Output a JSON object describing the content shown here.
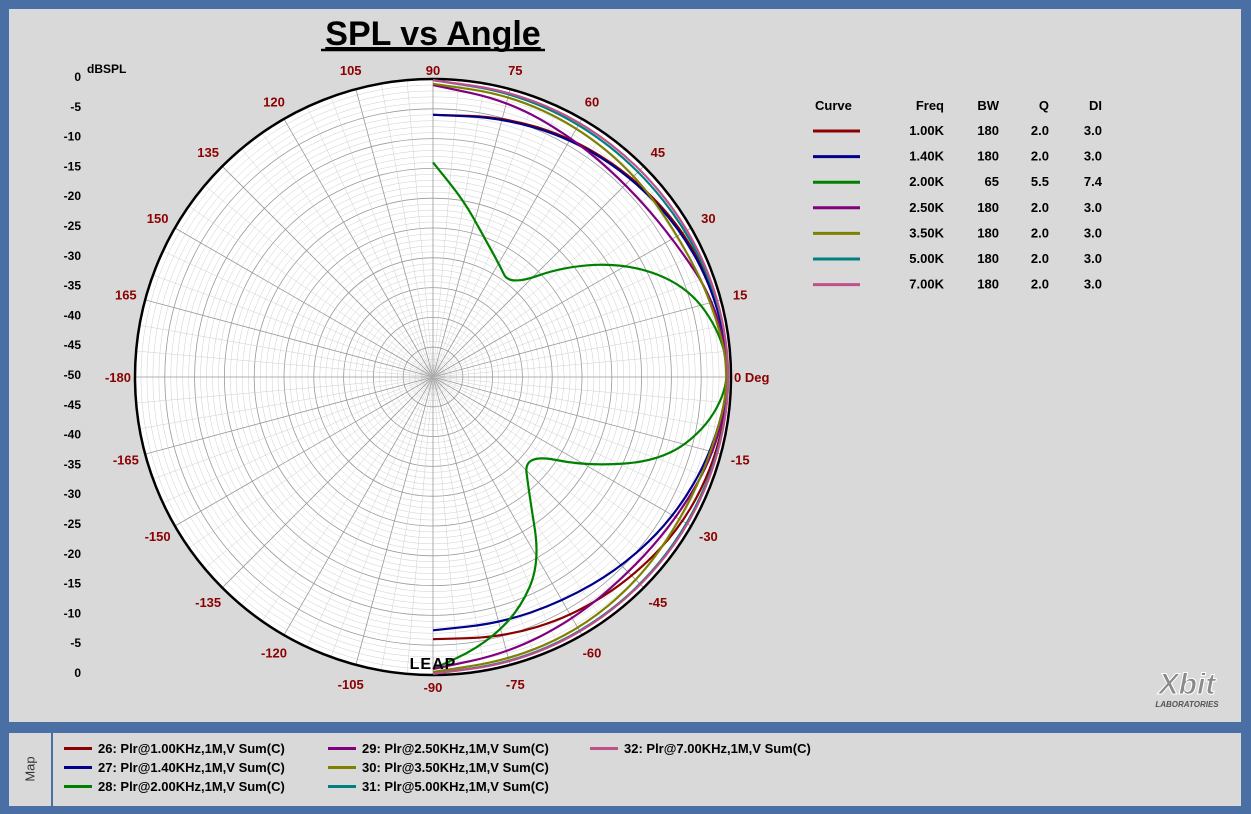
{
  "title": "SPL vs Angle",
  "y_axis_label": "dBSPL",
  "angle_unit_label": "0 Deg",
  "chart_data": {
    "type": "polar",
    "title": "SPL vs Angle",
    "radial_label": "dBSPL",
    "radial_range_db": [
      -50,
      0
    ],
    "radial_ticks_top": [
      "0",
      "-5",
      "-10",
      "-15",
      "-20",
      "-25",
      "-30",
      "-35",
      "-40",
      "-45",
      "-50"
    ],
    "radial_ticks_bottom": [
      "-45",
      "-40",
      "-35",
      "-30",
      "-25",
      "-20",
      "-15",
      "-10",
      "-5",
      "0"
    ],
    "angle_labels": [
      "0 Deg",
      "15",
      "30",
      "45",
      "60",
      "75",
      "90",
      "105",
      "120",
      "135",
      "150",
      "165",
      "-180",
      "-165",
      "-150",
      "-135",
      "-120",
      "-105",
      "-90",
      "-75",
      "-60",
      "-45",
      "-30",
      "-15"
    ],
    "grid": true,
    "series": [
      {
        "name": "26: Plr@1.00KHz,1M,V Sum(C)",
        "color": "#8b0000",
        "bw": 180,
        "q": 2.0,
        "angles": [
          0,
          15,
          30,
          45,
          60,
          75,
          90,
          -15,
          -30,
          -45,
          -60,
          -75,
          -90
        ],
        "db": [
          0,
          -0.5,
          -1.2,
          -2.5,
          -3.6,
          -4.8,
          -6,
          -0.5,
          -1.2,
          -2.5,
          -3.6,
          -4.8,
          -6
        ]
      },
      {
        "name": "27: Plr@1.40KHz,1M,V Sum(C)",
        "color": "#00008b",
        "bw": 180,
        "q": 2.0,
        "angles": [
          0,
          15,
          30,
          45,
          60,
          75,
          90,
          -15,
          -30,
          -45,
          -60,
          -75,
          -90
        ],
        "db": [
          0,
          -0.6,
          -1.5,
          -2.7,
          -3.8,
          -5,
          -6,
          -1.5,
          -3.2,
          -5,
          -6.5,
          -7.2,
          -7.5
        ]
      },
      {
        "name": "28: Plr@2.00KHz,1M,V Sum(C)",
        "color": "#008000",
        "bw": 65,
        "q": 5.5,
        "angles": [
          0,
          10,
          20,
          30,
          40,
          50,
          60,
          70,
          80,
          90,
          -10,
          -20,
          -30,
          -40,
          -50,
          -60,
          -70,
          -80,
          -90
        ],
        "db": [
          0,
          -1.5,
          -5,
          -12,
          -21,
          -30,
          -28,
          -25,
          -20,
          -14,
          -3,
          -9,
          -20,
          -30,
          -25,
          -14,
          -8,
          -4,
          -1
        ]
      },
      {
        "name": "29: Plr@2.50KHz,1M,V Sum(C)",
        "color": "#800080",
        "bw": 180,
        "q": 2.0,
        "angles": [
          0,
          15,
          30,
          45,
          60,
          75,
          90,
          -15,
          -30,
          -45,
          -60,
          -75,
          -90
        ],
        "db": [
          0,
          -1,
          -3.5,
          -4.2,
          -3.5,
          -2,
          -1,
          -1,
          -2.7,
          -3.5,
          -3,
          -2,
          -1
        ]
      },
      {
        "name": "30: Plr@3.50KHz,1M,V Sum(C)",
        "color": "#808000",
        "bw": 180,
        "q": 2.0,
        "angles": [
          0,
          15,
          30,
          45,
          60,
          75,
          90,
          -15,
          -30,
          -45,
          -60,
          -75,
          -90
        ],
        "db": [
          0,
          -1.5,
          -2.5,
          -2,
          -1.5,
          -1,
          -0.8,
          -1.5,
          -2,
          -1.5,
          -1,
          -0.8,
          -0.5
        ]
      },
      {
        "name": "31: Plr@5.00KHz,1M,V Sum(C)",
        "color": "#008080",
        "bw": 180,
        "q": 2.0,
        "angles": [
          0,
          15,
          30,
          45,
          60,
          75,
          90,
          -15,
          -30,
          -45,
          -60,
          -75,
          -90
        ],
        "db": [
          0,
          -0.3,
          -0.8,
          -1,
          -0.8,
          -0.5,
          -0.2,
          -0.3,
          -0.5,
          -0.5,
          -0.4,
          -0.3,
          -0.2
        ]
      },
      {
        "name": "32: Plr@7.00KHz,1M,V Sum(C)",
        "color": "#c0508b",
        "bw": 180,
        "q": 2.0,
        "angles": [
          0,
          15,
          30,
          45,
          60,
          75,
          90,
          -15,
          -30,
          -45,
          -60,
          -75,
          -90
        ],
        "db": [
          0,
          -0.2,
          -0.4,
          -0.5,
          -0.4,
          -0.3,
          -0.2,
          -0.2,
          -0.3,
          -0.4,
          -0.3,
          -0.2,
          -0.2
        ]
      }
    ]
  },
  "curve_table": {
    "headers": [
      "Curve",
      "Freq",
      "BW",
      "Q",
      "DI"
    ],
    "rows": [
      {
        "color": "#8b0000",
        "freq": "1.00K",
        "bw": "180",
        "q": "2.0",
        "di": "3.0"
      },
      {
        "color": "#00008b",
        "freq": "1.40K",
        "bw": "180",
        "q": "2.0",
        "di": "3.0"
      },
      {
        "color": "#008000",
        "freq": "2.00K",
        "bw": "65",
        "q": "5.5",
        "di": "7.4"
      },
      {
        "color": "#800080",
        "freq": "2.50K",
        "bw": "180",
        "q": "2.0",
        "di": "3.0"
      },
      {
        "color": "#808000",
        "freq": "3.50K",
        "bw": "180",
        "q": "2.0",
        "di": "3.0"
      },
      {
        "color": "#008080",
        "freq": "5.00K",
        "bw": "180",
        "q": "2.0",
        "di": "3.0"
      },
      {
        "color": "#c0508b",
        "freq": "7.00K",
        "bw": "180",
        "q": "2.0",
        "di": "3.0"
      }
    ]
  },
  "map_tab_label": "Map",
  "legend": [
    {
      "label": "26: Plr@1.00KHz,1M,V Sum(C)",
      "color": "#8b0000"
    },
    {
      "label": "27: Plr@1.40KHz,1M,V Sum(C)",
      "color": "#00008b"
    },
    {
      "label": "28: Plr@2.00KHz,1M,V Sum(C)",
      "color": "#008000"
    },
    {
      "label": "29: Plr@2.50KHz,1M,V Sum(C)",
      "color": "#800080"
    },
    {
      "label": "30: Plr@3.50KHz,1M,V Sum(C)",
      "color": "#808000"
    },
    {
      "label": "31: Plr@5.00KHz,1M,V Sum(C)",
      "color": "#008080"
    },
    {
      "label": "32: Plr@7.00KHz,1M,V Sum(C)",
      "color": "#c0508b"
    }
  ],
  "logo": {
    "main": "Xbit",
    "sub": "LABORATORIES"
  },
  "watermark_text": "LEAP"
}
